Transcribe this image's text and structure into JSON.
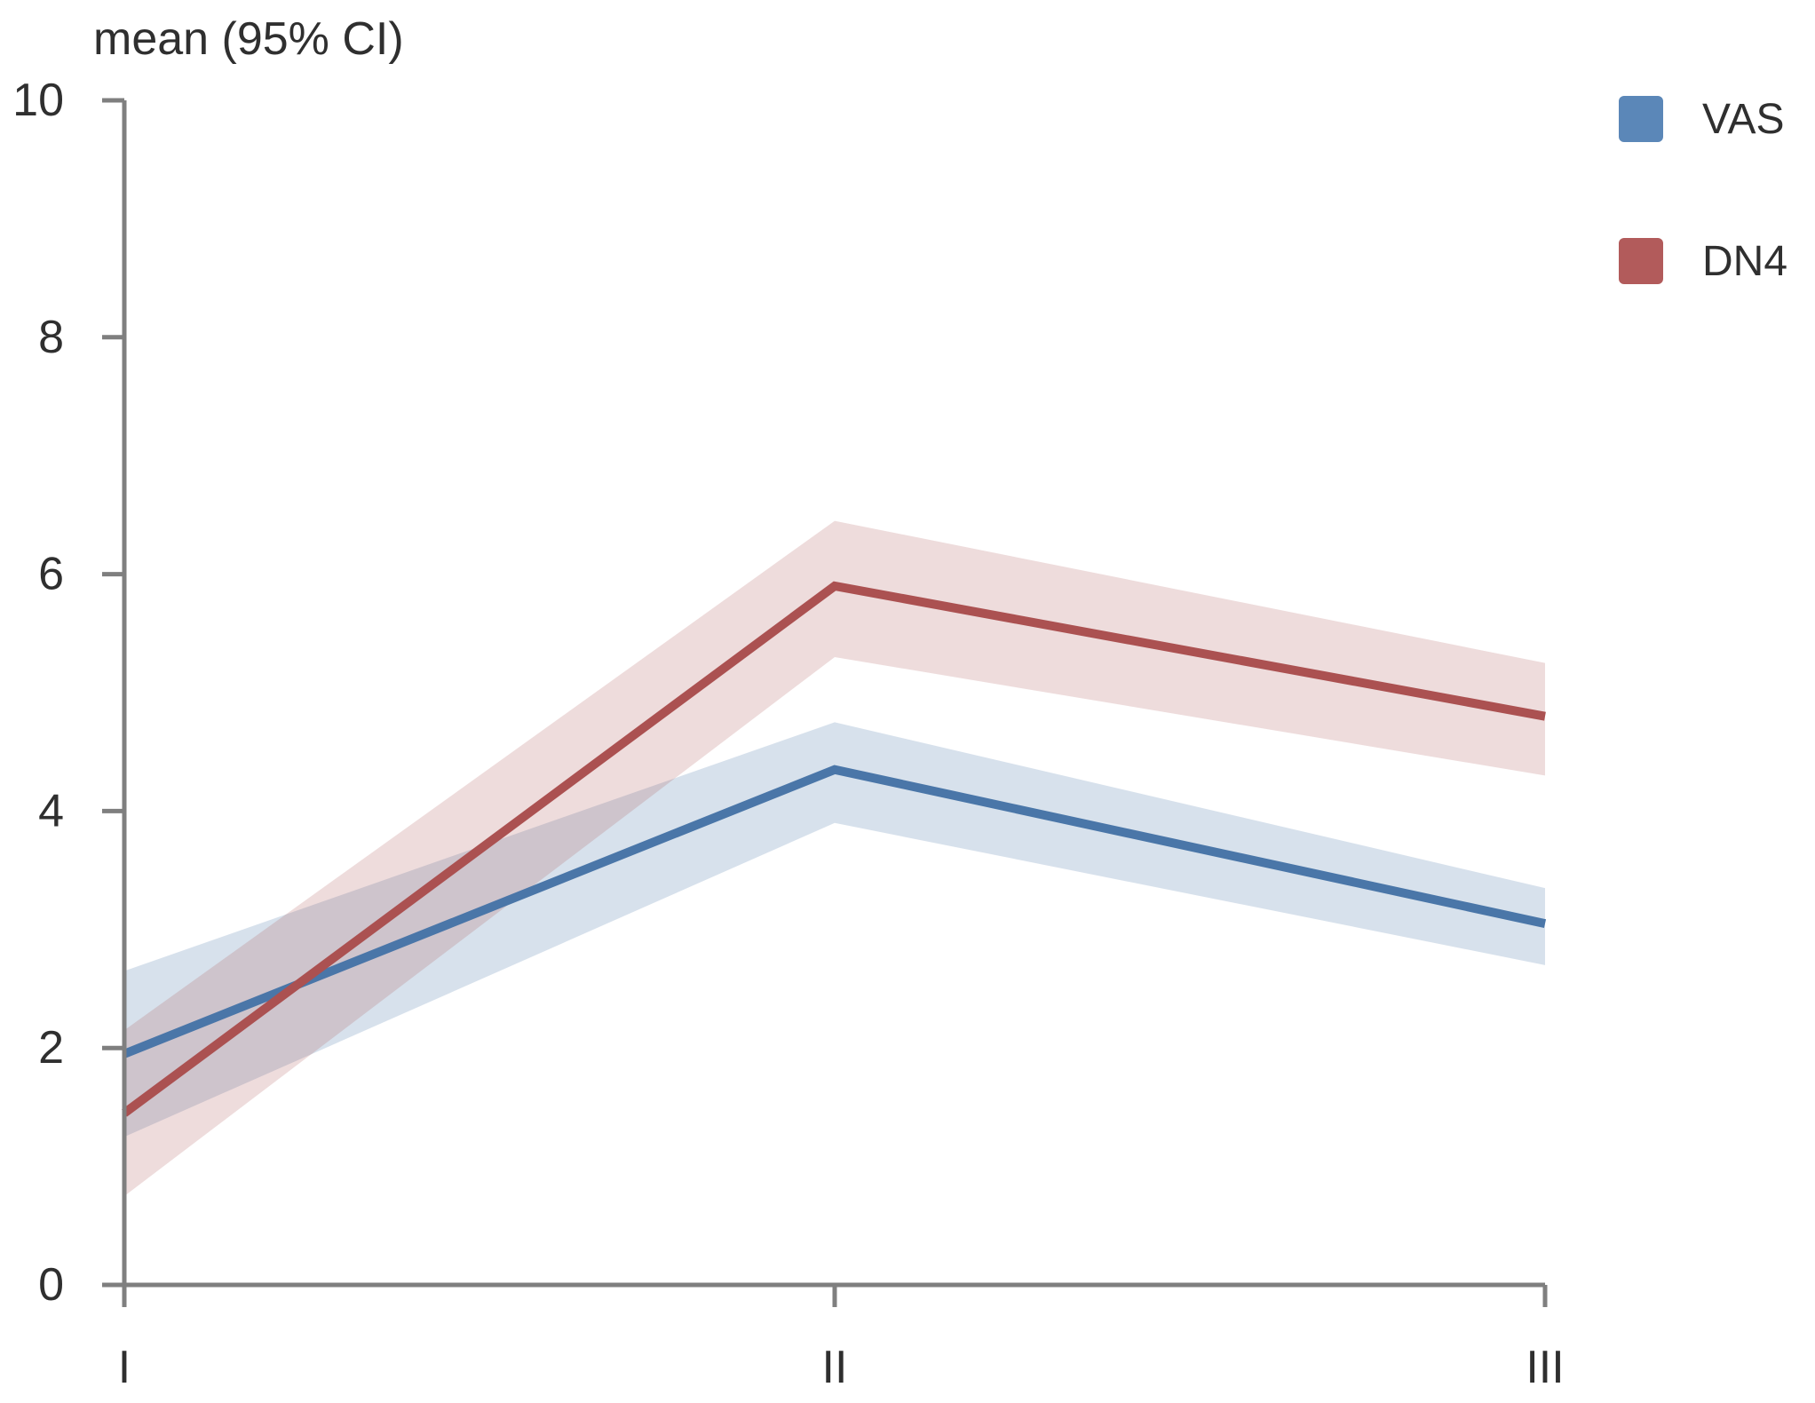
{
  "chart_data": {
    "type": "line",
    "title": "mean (95% CI)",
    "categories": [
      "I",
      "II",
      "III"
    ],
    "xlabel": "",
    "ylabel": "mean (95% CI)",
    "ylim": [
      0,
      10
    ],
    "yticks": [
      0,
      2,
      4,
      6,
      8,
      10
    ],
    "grid": false,
    "legend_position": "top-right",
    "axis_color": "#7f7f7f",
    "text_color": "#2f2f2f",
    "series": [
      {
        "name": "VAS",
        "values": [
          1.95,
          4.35,
          3.05
        ],
        "ci_lower": [
          1.25,
          3.9,
          2.7
        ],
        "ci_upper": [
          2.65,
          4.75,
          3.35
        ],
        "line_color": "#4a76a8",
        "band_color": "#4a76a8",
        "band_opacity": 0.22,
        "swatch_color": "#5b87b8"
      },
      {
        "name": "DN4",
        "values": [
          1.45,
          5.9,
          4.8
        ],
        "ci_lower": [
          0.75,
          5.3,
          4.3
        ],
        "ci_upper": [
          2.15,
          6.45,
          5.25
        ],
        "line_color": "#ab5151",
        "band_color": "#ab5151",
        "band_opacity": 0.2,
        "swatch_color": "#b25b5b"
      }
    ]
  }
}
